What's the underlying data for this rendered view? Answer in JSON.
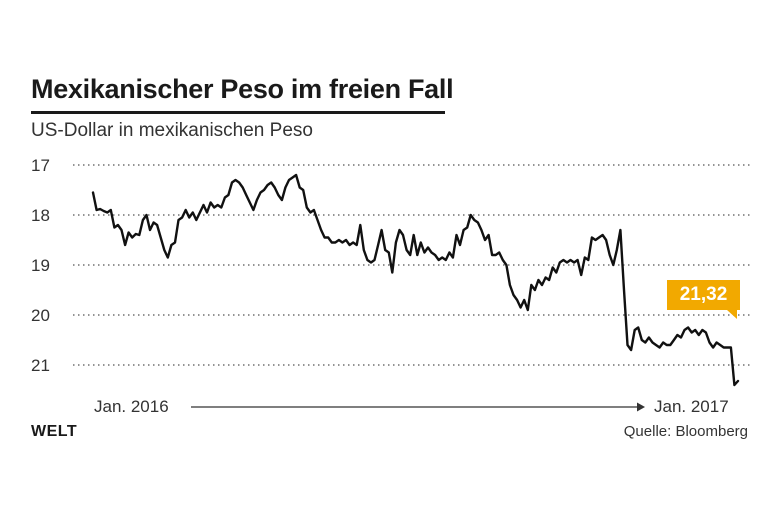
{
  "header": {
    "title": "Mexikanischer Peso im freien Fall",
    "subtitle": "US-Dollar in mexikanischen Peso"
  },
  "axis": {
    "start_label": "Jan. 2016",
    "end_label": "Jan. 2017"
  },
  "footer": {
    "logo": "WELT",
    "source": "Quelle: Bloomberg"
  },
  "annotation": {
    "value_label": "21,32"
  },
  "colors": {
    "line": "#111111",
    "grid": "#555555",
    "callout": "#f2a900"
  },
  "chart_data": {
    "type": "line",
    "title": "Mexikanischer Peso im freien Fall",
    "subtitle": "US-Dollar in mexikanischen Peso",
    "y_inverted": true,
    "ylim": [
      17,
      21
    ],
    "yticks": [
      17,
      18,
      19,
      20,
      21
    ],
    "ytick_labels": [
      "17",
      "18",
      "19",
      "20",
      "21"
    ],
    "grid": "horizontal dotted",
    "x_labels": [
      "Jan. 2016",
      "Jan. 2017"
    ],
    "series": [
      {
        "values": [
          17.55,
          17.9,
          17.88,
          17.92,
          17.95,
          17.9,
          18.25,
          18.2,
          18.3,
          18.6,
          18.35,
          18.45,
          18.38,
          18.4,
          18.1,
          18.0,
          18.3,
          18.15,
          18.2,
          18.45,
          18.7,
          18.85,
          18.6,
          18.55,
          18.1,
          18.05,
          17.9,
          18.05,
          17.95,
          18.1,
          17.95,
          17.8,
          17.95,
          17.75,
          17.85,
          17.8,
          17.85,
          17.65,
          17.6,
          17.35,
          17.3,
          17.35,
          17.45,
          17.6,
          17.75,
          17.9,
          17.7,
          17.55,
          17.5,
          17.4,
          17.35,
          17.45,
          17.6,
          17.7,
          17.45,
          17.3,
          17.25,
          17.2,
          17.45,
          17.5,
          17.85,
          17.95,
          17.9,
          18.1,
          18.3,
          18.45,
          18.45,
          18.55,
          18.55,
          18.5,
          18.55,
          18.5,
          18.6,
          18.55,
          18.6,
          18.2,
          18.7,
          18.9,
          18.95,
          18.9,
          18.6,
          18.3,
          18.7,
          18.75,
          19.15,
          18.55,
          18.3,
          18.4,
          18.7,
          18.8,
          18.4,
          18.8,
          18.55,
          18.75,
          18.65,
          18.75,
          18.8,
          18.9,
          18.85,
          18.9,
          18.75,
          18.85,
          18.4,
          18.6,
          18.3,
          18.25,
          18.0,
          18.1,
          18.15,
          18.3,
          18.5,
          18.4,
          18.8,
          18.8,
          18.75,
          18.9,
          19.0,
          19.4,
          19.6,
          19.7,
          19.85,
          19.7,
          19.9,
          19.4,
          19.5,
          19.3,
          19.4,
          19.25,
          19.3,
          19.05,
          19.15,
          18.95,
          18.9,
          18.95,
          18.9,
          18.95,
          18.9,
          19.2,
          18.85,
          18.9,
          18.45,
          18.5,
          18.45,
          18.4,
          18.5,
          18.8,
          19.0,
          18.7,
          18.3,
          19.5,
          20.6,
          20.7,
          20.3,
          20.25,
          20.5,
          20.55,
          20.45,
          20.55,
          20.6,
          20.65,
          20.55,
          20.6,
          20.6,
          20.5,
          20.4,
          20.45,
          20.3,
          20.25,
          20.35,
          20.3,
          20.4,
          20.3,
          20.35,
          20.55,
          20.65,
          20.55,
          20.6,
          20.65,
          20.65,
          20.65,
          21.4,
          21.32
        ]
      }
    ],
    "annotations": [
      {
        "text": "21,32",
        "value": 21.32,
        "position": "last point"
      }
    ]
  }
}
